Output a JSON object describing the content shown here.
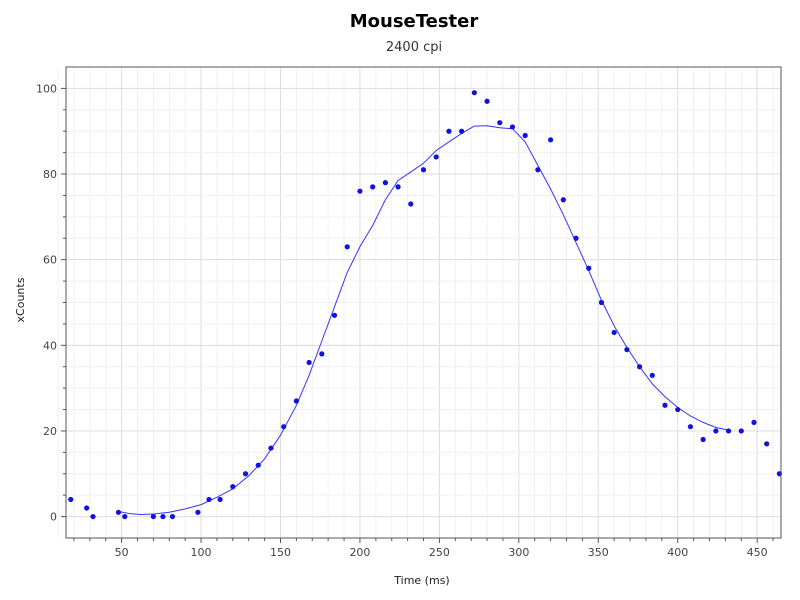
{
  "chart_data": {
    "type": "scatter",
    "title": "MouseTester",
    "subtitle": "2400 cpi",
    "xlabel": "Time (ms)",
    "ylabel": "xCounts",
    "xlim": [
      15,
      465
    ],
    "ylim": [
      -5,
      105
    ],
    "x_ticks": [
      50,
      100,
      150,
      200,
      250,
      300,
      350,
      400,
      450
    ],
    "y_ticks": [
      0,
      20,
      40,
      60,
      80,
      100
    ],
    "grid": true,
    "colors": {
      "points": "#1010e0",
      "curve": "#3535ff",
      "grid": "#e8e8e8",
      "axis": "#555555"
    },
    "series": [
      {
        "values": [
          [
            18,
            4
          ],
          [
            28,
            2
          ],
          [
            32,
            0
          ],
          [
            48,
            1
          ],
          [
            52,
            0
          ],
          [
            70,
            0
          ],
          [
            76,
            0
          ],
          [
            82,
            0
          ],
          [
            98,
            1
          ],
          [
            105,
            4
          ],
          [
            112,
            4
          ],
          [
            120,
            7
          ],
          [
            128,
            10
          ],
          [
            136,
            12
          ],
          [
            144,
            16
          ],
          [
            152,
            21
          ],
          [
            160,
            27
          ],
          [
            168,
            36
          ],
          [
            176,
            38
          ],
          [
            184,
            47
          ],
          [
            192,
            63
          ],
          [
            200,
            76
          ],
          [
            208,
            77
          ],
          [
            216,
            78
          ],
          [
            224,
            77
          ],
          [
            232,
            73
          ],
          [
            240,
            81
          ],
          [
            248,
            84
          ],
          [
            256,
            90
          ],
          [
            264,
            90
          ],
          [
            272,
            99
          ],
          [
            280,
            97
          ],
          [
            288,
            92
          ],
          [
            296,
            91
          ],
          [
            304,
            89
          ],
          [
            312,
            81
          ],
          [
            320,
            88
          ],
          [
            328,
            74
          ],
          [
            336,
            65
          ],
          [
            344,
            58
          ],
          [
            352,
            50
          ],
          [
            360,
            43
          ],
          [
            368,
            39
          ],
          [
            376,
            35
          ],
          [
            384,
            33
          ],
          [
            392,
            26
          ],
          [
            400,
            25
          ],
          [
            408,
            21
          ],
          [
            416,
            18
          ],
          [
            424,
            20
          ],
          [
            432,
            20
          ],
          [
            440,
            20
          ],
          [
            448,
            22
          ],
          [
            456,
            17
          ],
          [
            464,
            10
          ]
        ]
      }
    ],
    "curve": [
      [
        48,
        1.2
      ],
      [
        55,
        0.7
      ],
      [
        62,
        0.5
      ],
      [
        70,
        0.6
      ],
      [
        80,
        1.0
      ],
      [
        90,
        1.8
      ],
      [
        100,
        2.8
      ],
      [
        110,
        4.5
      ],
      [
        120,
        6.5
      ],
      [
        130,
        9.5
      ],
      [
        140,
        13.5
      ],
      [
        150,
        19
      ],
      [
        160,
        26
      ],
      [
        168,
        33
      ],
      [
        176,
        41
      ],
      [
        184,
        49
      ],
      [
        192,
        57
      ],
      [
        200,
        63
      ],
      [
        208,
        68
      ],
      [
        216,
        74
      ],
      [
        224,
        78.5
      ],
      [
        232,
        80.5
      ],
      [
        240,
        82.5
      ],
      [
        248,
        85.5
      ],
      [
        256,
        87.5
      ],
      [
        264,
        89.5
      ],
      [
        272,
        91.2
      ],
      [
        280,
        91.3
      ],
      [
        288,
        90.8
      ],
      [
        296,
        90.6
      ],
      [
        304,
        87.5
      ],
      [
        312,
        82
      ],
      [
        320,
        76.5
      ],
      [
        328,
        70.5
      ],
      [
        336,
        64
      ],
      [
        344,
        57.5
      ],
      [
        352,
        50.5
      ],
      [
        360,
        44.5
      ],
      [
        368,
        39.5
      ],
      [
        376,
        35
      ],
      [
        384,
        31
      ],
      [
        392,
        28
      ],
      [
        400,
        25.5
      ],
      [
        408,
        23.5
      ],
      [
        416,
        22
      ],
      [
        424,
        20.8
      ],
      [
        432,
        20.2
      ]
    ]
  }
}
